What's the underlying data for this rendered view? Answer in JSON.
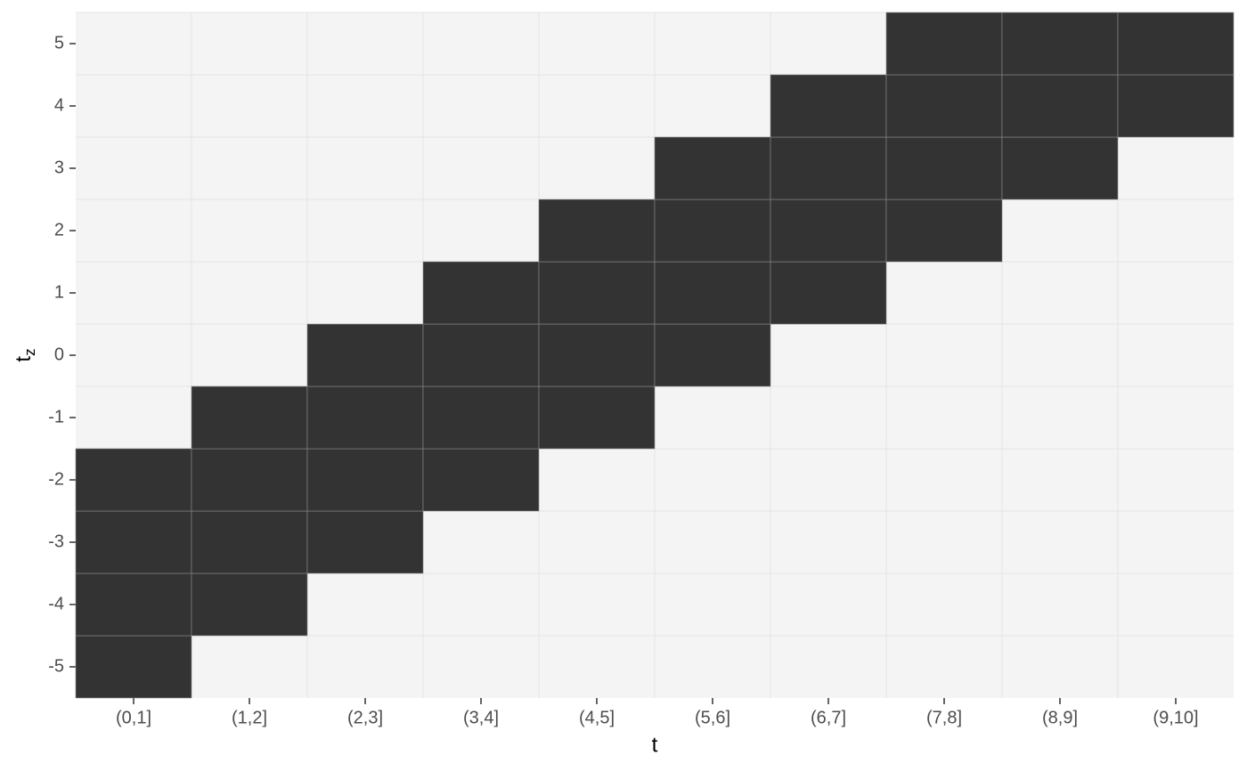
{
  "chart_data": {
    "type": "tile",
    "x_label": "t",
    "y_label": "t",
    "y_label_subscript": "z",
    "categories": [
      "(0,1]",
      "(1,2]",
      "(2,3]",
      "(3,4]",
      "(4,5]",
      "(5,6]",
      "(6,7]",
      "(7,8]",
      "(8,9]",
      "(9,10]"
    ],
    "ylim": [
      -5.5,
      5.5
    ],
    "yticks": [
      -5,
      -4,
      -3,
      -2,
      -1,
      0,
      1,
      2,
      3,
      4,
      5
    ],
    "values": [
      [
        1,
        1,
        1,
        1,
        0,
        0,
        0,
        0,
        0,
        0,
        0
      ],
      [
        0,
        1,
        1,
        1,
        1,
        0,
        0,
        0,
        0,
        0,
        0
      ],
      [
        0,
        0,
        1,
        1,
        1,
        1,
        0,
        0,
        0,
        0,
        0
      ],
      [
        0,
        0,
        0,
        1,
        1,
        1,
        1,
        0,
        0,
        0,
        0
      ],
      [
        0,
        0,
        0,
        0,
        1,
        1,
        1,
        1,
        0,
        0,
        0
      ],
      [
        0,
        0,
        0,
        0,
        0,
        1,
        1,
        1,
        1,
        0,
        0
      ],
      [
        0,
        0,
        0,
        0,
        0,
        0,
        1,
        1,
        1,
        1,
        0
      ],
      [
        0,
        0,
        0,
        0,
        0,
        0,
        0,
        1,
        1,
        1,
        1
      ],
      [
        0,
        0,
        0,
        0,
        0,
        0,
        0,
        0,
        1,
        1,
        1
      ],
      [
        0,
        0,
        0,
        0,
        0,
        0,
        0,
        0,
        0,
        1,
        1
      ]
    ],
    "color": "#333333",
    "panel_color": "#f4f4f4"
  }
}
